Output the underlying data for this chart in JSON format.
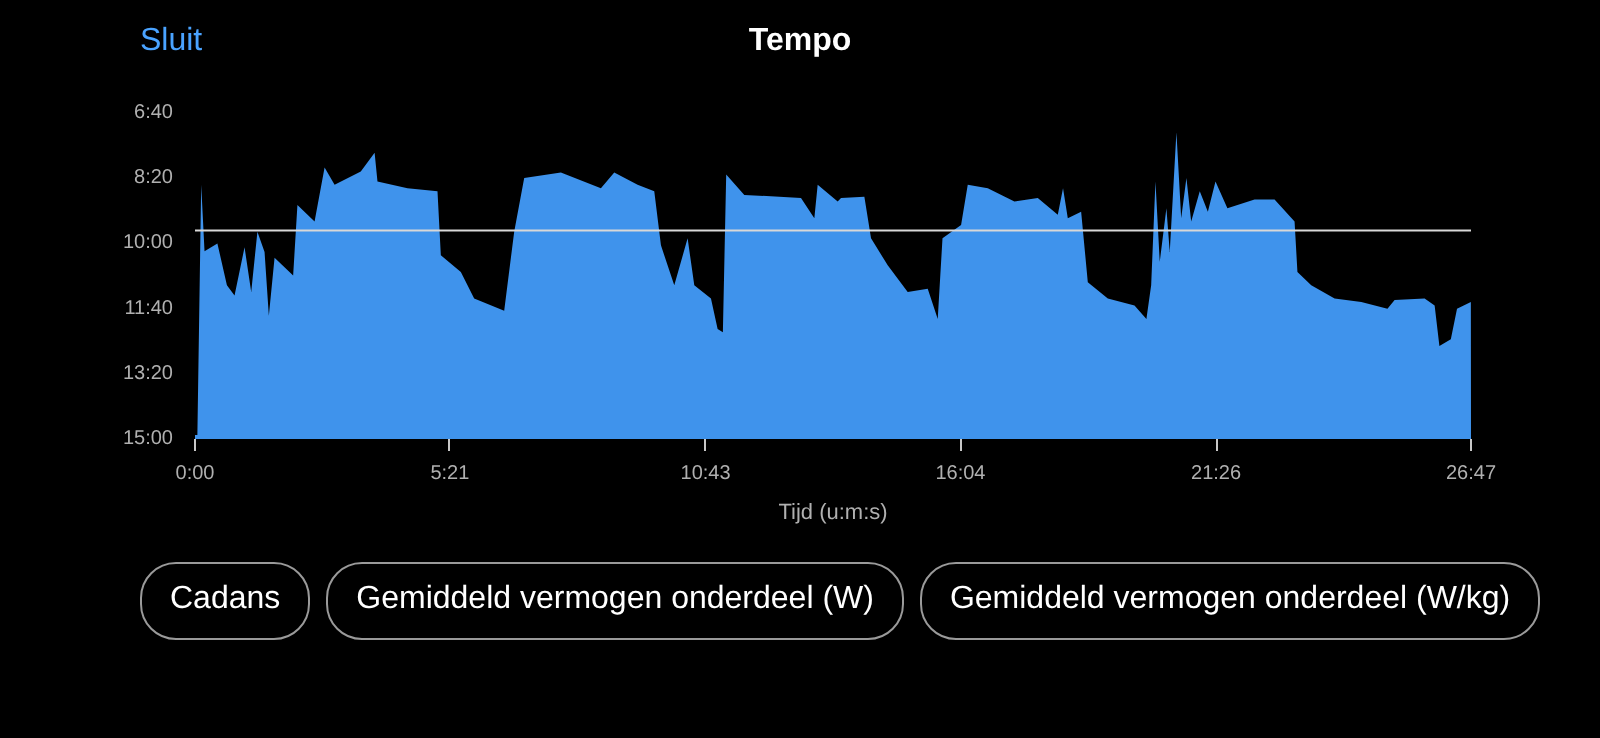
{
  "chart_data": {
    "type": "area",
    "title": "Tempo",
    "xlabel": "Tijd (u:m:s)",
    "annotations": [
      "Sluit",
      "Cadans",
      "Gemiddeld vermogen onderdeel (W)",
      "Gemiddeld vermogen onderdeel (W/kg)"
    ],
    "xlim": [
      0,
      26.7833
    ],
    "xticks": [
      {
        "value": 0,
        "label": "0:00"
      },
      {
        "value": 5.35,
        "label": "5:21"
      },
      {
        "value": 10.7167,
        "label": "10:43"
      },
      {
        "value": 16.0667,
        "label": "16:04"
      },
      {
        "value": 21.4333,
        "label": "21:26"
      },
      {
        "value": 26.7833,
        "label": "26:47"
      }
    ],
    "ylim": [
      15,
      6.6667
    ],
    "yticks": [
      {
        "value": 6.6667,
        "label": "6:40"
      },
      {
        "value": 8.3333,
        "label": "8:20"
      },
      {
        "value": 10,
        "label": "10:00"
      },
      {
        "value": 11.6667,
        "label": "11:40"
      },
      {
        "value": 13.3333,
        "label": "13:20"
      },
      {
        "value": 15,
        "label": "15:00"
      }
    ],
    "grid": false,
    "ref_lines": [
      {
        "axis": "y",
        "value": 9.67,
        "label": null,
        "color": "#d8d8d8"
      }
    ],
    "series": [
      {
        "color": "#3f93ec",
        "x": [
          0,
          0.05,
          0.13,
          0.2,
          0.47,
          0.67,
          0.83,
          1.04,
          1.18,
          1.31,
          1.46,
          1.55,
          1.67,
          2.06,
          2.15,
          2.51,
          2.72,
          2.93,
          3.48,
          3.77,
          3.83,
          4.46,
          5.09,
          5.16,
          5.58,
          5.86,
          6.49,
          6.7,
          6.91,
          7.68,
          8.52,
          8.8,
          9.29,
          9.64,
          9.78,
          10.06,
          10.34,
          10.48,
          10.83,
          10.97,
          11.08,
          11.15,
          11.53,
          12.72,
          13.0,
          13.07,
          13.49,
          13.56,
          14.05,
          14.19,
          14.54,
          14.96,
          15.38,
          15.59,
          15.69,
          16.08,
          16.22,
          16.64,
          17.2,
          17.69,
          18.11,
          18.22,
          18.32,
          18.6,
          18.74,
          19.16,
          19.72,
          19.97,
          20.07,
          20.16,
          20.25,
          20.39,
          20.46,
          20.6,
          20.7,
          20.81,
          20.91,
          21.09,
          21.26,
          21.42,
          21.67,
          22.24,
          22.66,
          23.08,
          23.14,
          23.43,
          23.92,
          24.48,
          25.03,
          25.18,
          25.81,
          26.02,
          26.12,
          26.36,
          26.49,
          26.78,
          26.7833
        ],
        "values": [
          14.9,
          14.9,
          8.5,
          10.2,
          10.0,
          11.07,
          11.33,
          10.1,
          11.24,
          9.7,
          10.22,
          11.85,
          10.37,
          10.82,
          9.02,
          9.44,
          8.06,
          8.5,
          8.16,
          7.68,
          8.42,
          8.59,
          8.67,
          10.3,
          10.73,
          11.41,
          11.72,
          9.7,
          8.33,
          8.19,
          8.59,
          8.19,
          8.5,
          8.67,
          10.05,
          11.07,
          9.87,
          11.07,
          11.41,
          12.19,
          12.27,
          8.24,
          8.76,
          8.84,
          9.36,
          8.5,
          8.93,
          8.84,
          8.81,
          9.87,
          10.56,
          11.24,
          11.16,
          11.93,
          9.87,
          9.53,
          8.5,
          8.59,
          8.93,
          8.84,
          9.27,
          8.59,
          9.36,
          9.19,
          10.99,
          11.41,
          11.59,
          11.93,
          11.07,
          8.42,
          10.47,
          9.1,
          10.22,
          7.16,
          9.36,
          8.33,
          9.44,
          8.67,
          9.19,
          8.42,
          9.1,
          8.88,
          8.88,
          9.44,
          10.73,
          11.07,
          11.41,
          11.5,
          11.67,
          11.45,
          11.41,
          11.59,
          12.62,
          12.45,
          11.67,
          11.5,
          15
        ]
      }
    ]
  }
}
